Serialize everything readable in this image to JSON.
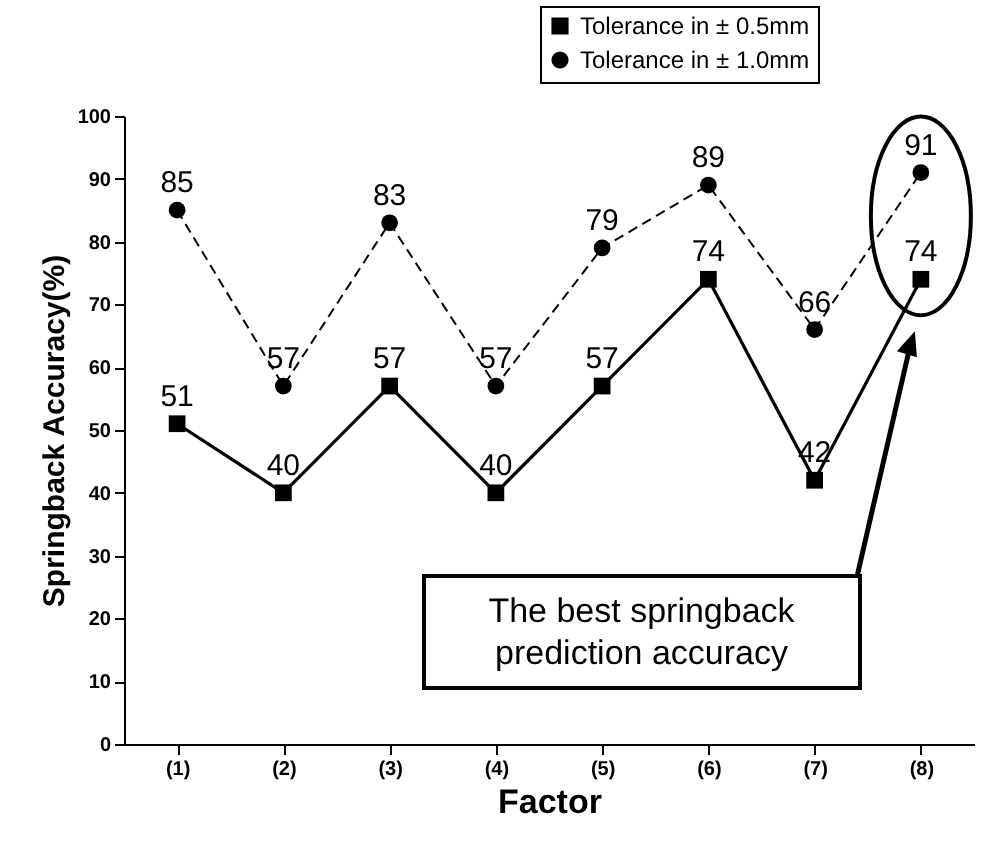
{
  "chart_data": {
    "type": "line",
    "xlabel": "Factor",
    "ylabel": "Springback Accuracy(%)",
    "categories": [
      "(1)",
      "(2)",
      "(3)",
      "(4)",
      "(5)",
      "(6)",
      "(7)",
      "(8)"
    ],
    "series": [
      {
        "name": "Tolerance in ± 0.5mm",
        "color": "#000000",
        "marker": "square",
        "line_style": "solid",
        "values": [
          51,
          40,
          57,
          40,
          57,
          74,
          42,
          74
        ]
      },
      {
        "name": "Tolerance in ± 1.0mm",
        "color": "#000000",
        "marker": "circle",
        "line_style": "dashed",
        "values": [
          85,
          57,
          83,
          57,
          79,
          89,
          66,
          91
        ]
      }
    ],
    "ylim": [
      0,
      100
    ],
    "yticks": [
      0,
      10,
      20,
      30,
      40,
      50,
      60,
      70,
      80,
      90,
      100
    ],
    "data_labels": true,
    "legend": "top right",
    "grid": false,
    "annotations": [
      "The best springback prediction accuracy"
    ]
  }
}
